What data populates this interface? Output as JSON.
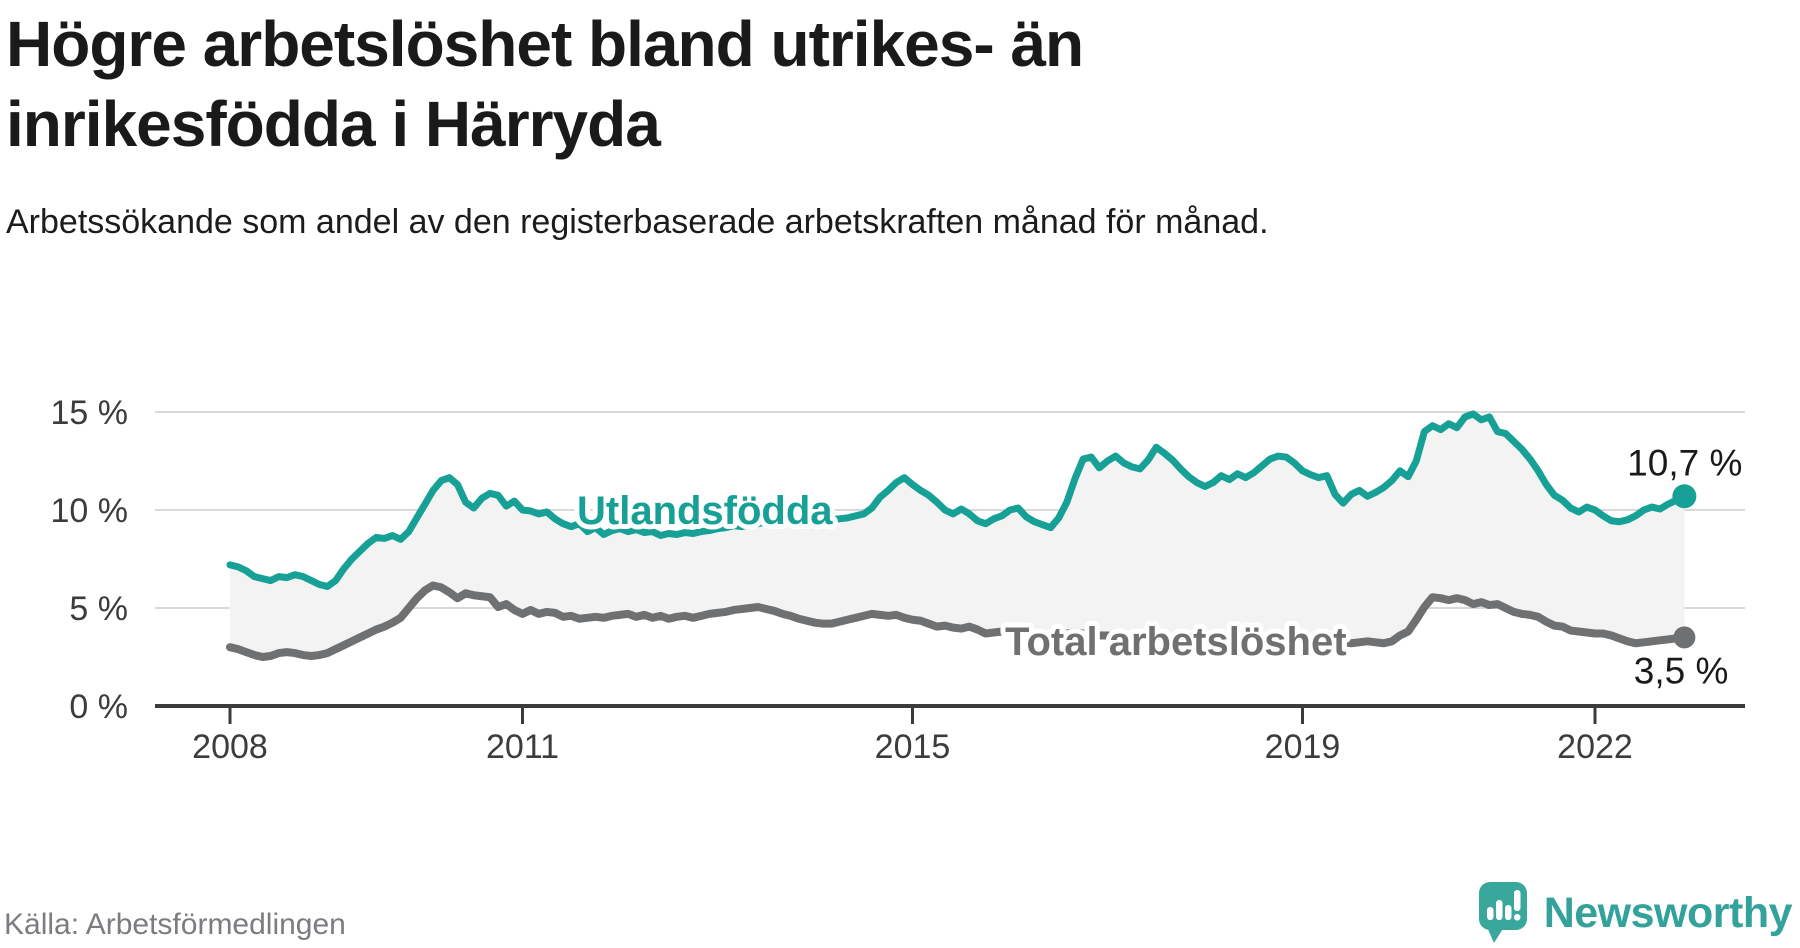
{
  "header": {
    "title": "Högre arbetslöshet bland utrikes- än inrikesfödda i Härryda",
    "subtitle": "Arbetssökande som andel av den registerbaserade arbetskraften månad för månad."
  },
  "footer": {
    "source": "Källa: Arbetsförmedlingen",
    "brand": "Newsworthy",
    "brand_icon": "speech-bubble-bar-chart"
  },
  "colors": {
    "utlandsfodda": "#16a096",
    "total": "#6f7072",
    "band": "#f3f3f4",
    "grid": "#d9d9da",
    "axis": "#3b3b3b",
    "tick_text": "#3c3c3c",
    "value_text": "#1a1a1a",
    "brand_teal": "#33a29a",
    "source_text": "#7c7c80",
    "halo": "#ffffff"
  },
  "chart_data": {
    "type": "line",
    "x_start": "2008-01",
    "x_end": "2022-12",
    "x_interval": "month",
    "grid": true,
    "ylim": [
      0,
      15
    ],
    "yticks": [
      {
        "value": 0,
        "label": "0 %"
      },
      {
        "value": 5,
        "label": "5 %"
      },
      {
        "value": 10,
        "label": "10 %"
      },
      {
        "value": 15,
        "label": "15 %"
      }
    ],
    "xticks": [
      {
        "year": 2008,
        "label": "2008"
      },
      {
        "year": 2011,
        "label": "2011"
      },
      {
        "year": 2015,
        "label": "2015"
      },
      {
        "year": 2019,
        "label": "2019"
      },
      {
        "year": 2022,
        "label": "2022"
      }
    ],
    "band_between_series": true,
    "legend": "inline-annotations",
    "series": [
      {
        "name": "Utlandsfödda",
        "color_key": "utlandsfodda",
        "end_label": "10,7 %",
        "end_value": 10.7,
        "values": [
          7.2,
          7.1,
          6.9,
          6.6,
          6.5,
          6.4,
          6.6,
          6.55,
          6.7,
          6.6,
          6.4,
          6.2,
          6.1,
          6.4,
          7.0,
          7.5,
          7.9,
          8.3,
          8.6,
          8.55,
          8.7,
          8.5,
          8.9,
          9.6,
          10.3,
          11.0,
          11.5,
          11.65,
          11.3,
          10.4,
          10.1,
          10.6,
          10.85,
          10.75,
          10.2,
          10.45,
          10.0,
          9.95,
          9.8,
          9.9,
          9.55,
          9.3,
          9.15,
          9.3,
          8.9,
          9.1,
          8.75,
          8.95,
          9.05,
          8.9,
          9.0,
          8.85,
          8.9,
          8.7,
          8.8,
          8.75,
          8.85,
          8.8,
          8.9,
          8.95,
          9.05,
          9.1,
          9.2,
          9.15,
          9.25,
          9.3,
          9.4,
          9.35,
          9.45,
          9.4,
          9.35,
          9.4,
          9.45,
          9.4,
          9.5,
          9.55,
          9.6,
          9.7,
          9.8,
          10.1,
          10.65,
          11.0,
          11.4,
          11.65,
          11.3,
          11.0,
          10.75,
          10.4,
          10.0,
          9.8,
          10.05,
          9.8,
          9.45,
          9.3,
          9.55,
          9.7,
          10.0,
          10.1,
          9.65,
          9.4,
          9.25,
          9.1,
          9.6,
          10.4,
          11.6,
          12.6,
          12.7,
          12.15,
          12.5,
          12.75,
          12.4,
          12.2,
          12.1,
          12.55,
          13.2,
          12.9,
          12.55,
          12.1,
          11.7,
          11.4,
          11.2,
          11.4,
          11.75,
          11.55,
          11.85,
          11.65,
          11.9,
          12.25,
          12.6,
          12.75,
          12.7,
          12.4,
          12.0,
          11.8,
          11.65,
          11.75,
          10.8,
          10.35,
          10.8,
          11.0,
          10.7,
          10.9,
          11.15,
          11.5,
          12.0,
          11.7,
          12.5,
          14.0,
          14.3,
          14.1,
          14.4,
          14.2,
          14.75,
          14.9,
          14.6,
          14.75,
          14.0,
          13.9,
          13.5,
          13.1,
          12.6,
          12.0,
          11.3,
          10.75,
          10.5,
          10.1,
          9.9,
          10.15,
          10.0,
          9.7,
          9.45,
          9.4,
          9.5,
          9.7,
          10.0,
          10.15,
          10.05,
          10.3,
          10.5,
          10.7
        ]
      },
      {
        "name": "Total arbetslöshet",
        "color_key": "total",
        "end_label": "3,5 %",
        "end_value": 3.5,
        "values": [
          3.0,
          2.9,
          2.75,
          2.6,
          2.5,
          2.55,
          2.7,
          2.75,
          2.7,
          2.6,
          2.55,
          2.6,
          2.7,
          2.9,
          3.1,
          3.3,
          3.5,
          3.7,
          3.9,
          4.05,
          4.25,
          4.5,
          5.0,
          5.5,
          5.9,
          6.15,
          6.05,
          5.8,
          5.5,
          5.75,
          5.65,
          5.6,
          5.55,
          5.05,
          5.2,
          4.9,
          4.7,
          4.9,
          4.7,
          4.8,
          4.75,
          4.55,
          4.6,
          4.45,
          4.5,
          4.55,
          4.5,
          4.6,
          4.65,
          4.7,
          4.55,
          4.65,
          4.5,
          4.6,
          4.45,
          4.55,
          4.6,
          4.5,
          4.6,
          4.7,
          4.75,
          4.8,
          4.9,
          4.95,
          5.0,
          5.05,
          4.95,
          4.85,
          4.7,
          4.6,
          4.45,
          4.35,
          4.25,
          4.2,
          4.2,
          4.3,
          4.4,
          4.5,
          4.6,
          4.7,
          4.65,
          4.6,
          4.65,
          4.5,
          4.4,
          4.35,
          4.2,
          4.05,
          4.1,
          4.0,
          3.95,
          4.05,
          3.9,
          3.7,
          3.75,
          3.8,
          3.85,
          3.8,
          3.75,
          3.7,
          3.65,
          3.6,
          3.65,
          3.7,
          3.75,
          3.7,
          3.65,
          3.6,
          3.6,
          3.55,
          3.5,
          3.45,
          3.5,
          3.45,
          3.5,
          3.45,
          3.4,
          3.35,
          3.4,
          3.45,
          3.4,
          3.35,
          3.3,
          3.35,
          3.3,
          3.25,
          3.3,
          3.25,
          3.3,
          3.25,
          3.2,
          3.25,
          3.2,
          3.25,
          3.2,
          3.15,
          3.2,
          3.25,
          3.2,
          3.25,
          3.3,
          3.25,
          3.2,
          3.3,
          3.6,
          3.8,
          4.4,
          5.05,
          5.55,
          5.5,
          5.4,
          5.5,
          5.4,
          5.2,
          5.3,
          5.15,
          5.2,
          5.0,
          4.8,
          4.7,
          4.65,
          4.55,
          4.3,
          4.1,
          4.05,
          3.85,
          3.8,
          3.75,
          3.7,
          3.7,
          3.6,
          3.45,
          3.3,
          3.2,
          3.25,
          3.3,
          3.35,
          3.4,
          3.45,
          3.5
        ]
      }
    ]
  }
}
